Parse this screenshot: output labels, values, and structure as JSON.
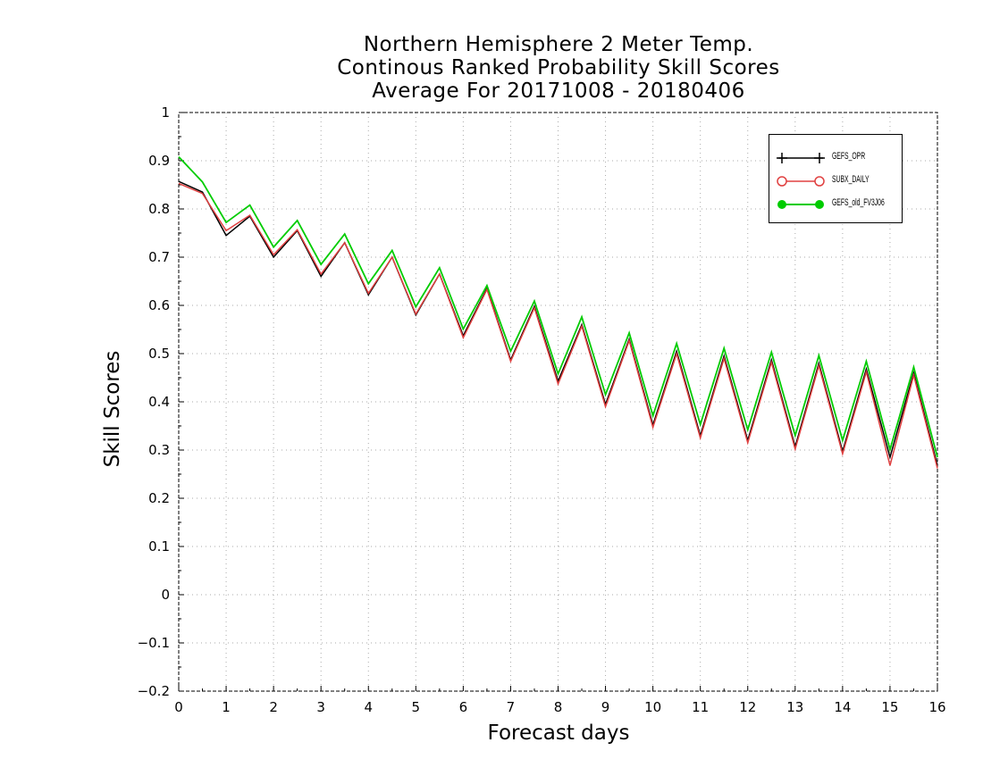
{
  "title_lines": [
    "Northern Hemisphere 2 Meter Temp.",
    "Continous Ranked Probability Skill Scores",
    "Average For 20171008 - 20180406"
  ],
  "chart_data": {
    "type": "line",
    "xlabel": "Forecast days",
    "ylabel": "Skill Scores",
    "xlim": [
      0,
      16
    ],
    "ylim": [
      -0.2,
      1
    ],
    "xticks": [
      "0",
      "1",
      "2",
      "3",
      "4",
      "5",
      "6",
      "7",
      "8",
      "9",
      "10",
      "11",
      "12",
      "13",
      "14",
      "15",
      "16"
    ],
    "yticks": [
      "-0.2",
      "-0.1",
      "0",
      "0.1",
      "0.2",
      "0.3",
      "0.4",
      "0.5",
      "0.6",
      "0.7",
      "0.8",
      "0.9",
      "1"
    ],
    "grid": true,
    "legend_position": "top-right",
    "x": [
      0,
      0.5,
      1,
      1.5,
      2,
      2.5,
      3,
      3.5,
      4,
      4.5,
      5,
      5.5,
      6,
      6.5,
      7,
      7.5,
      8,
      8.5,
      9,
      9.5,
      10,
      10.5,
      11,
      11.5,
      12,
      12.5,
      13,
      13.5,
      14,
      14.5,
      15,
      15.5,
      16
    ],
    "series": [
      {
        "name": "GEFS_OPR",
        "color": "#000000",
        "marker": "plus",
        "values": [
          0.857,
          0.835,
          0.745,
          0.785,
          0.7,
          0.755,
          0.66,
          0.73,
          0.622,
          0.7,
          0.58,
          0.665,
          0.537,
          0.635,
          0.487,
          0.598,
          0.443,
          0.56,
          0.395,
          0.53,
          0.352,
          0.505,
          0.33,
          0.495,
          0.32,
          0.487,
          0.307,
          0.48,
          0.297,
          0.468,
          0.285,
          0.46,
          0.268
        ]
      },
      {
        "name": "SUBX_DAILY",
        "color": "#e04040",
        "marker": "open-circle",
        "values": [
          0.853,
          0.832,
          0.755,
          0.787,
          0.705,
          0.757,
          0.665,
          0.73,
          0.625,
          0.7,
          0.582,
          0.665,
          0.533,
          0.633,
          0.484,
          0.595,
          0.437,
          0.557,
          0.39,
          0.527,
          0.347,
          0.5,
          0.325,
          0.49,
          0.315,
          0.482,
          0.302,
          0.475,
          0.292,
          0.462,
          0.268,
          0.455,
          0.262
        ]
      },
      {
        "name": "GEFS_old_FV3J06",
        "color": "#00cc00",
        "marker": "filled-circle",
        "values": [
          0.908,
          0.856,
          0.772,
          0.808,
          0.721,
          0.776,
          0.685,
          0.748,
          0.645,
          0.714,
          0.597,
          0.678,
          0.551,
          0.641,
          0.505,
          0.609,
          0.458,
          0.576,
          0.415,
          0.543,
          0.371,
          0.521,
          0.353,
          0.511,
          0.342,
          0.503,
          0.33,
          0.496,
          0.32,
          0.484,
          0.301,
          0.472,
          0.285
        ]
      }
    ]
  }
}
